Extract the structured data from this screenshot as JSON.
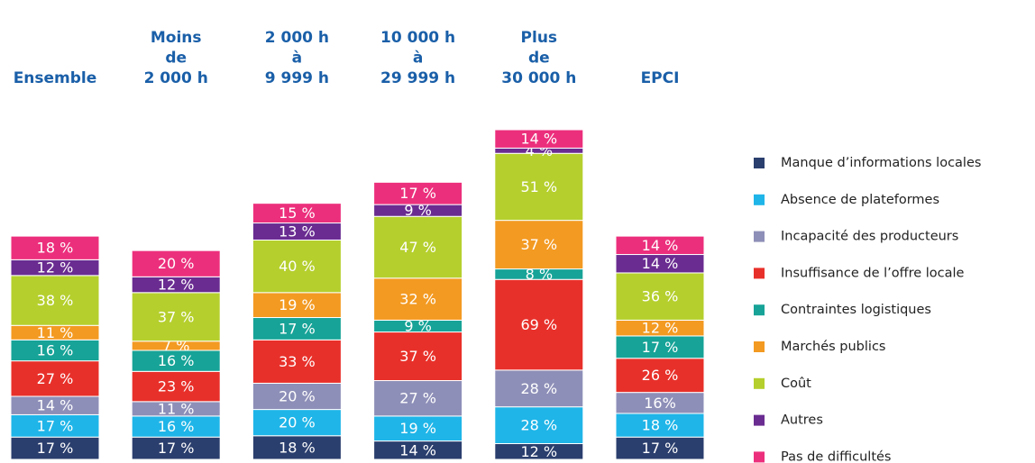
{
  "chart_data": {
    "type": "stacked_bar",
    "categories": [
      [
        "Ensemble"
      ],
      [
        "Moins",
        "de",
        "2 000 h"
      ],
      [
        "2 000 h",
        "à",
        "9 999 h"
      ],
      [
        "10 000 h",
        "à",
        "29 999 h"
      ],
      [
        "Plus",
        "de",
        "30 000 h"
      ],
      [
        "EPCI"
      ]
    ],
    "series": [
      {
        "name": "Manque d’informations locales",
        "color": "#2b3f6e",
        "values": [
          17,
          17,
          18,
          14,
          12,
          17
        ],
        "value_labels": [
          "17 %",
          "17 %",
          "18 %",
          "14 %",
          "12 %",
          "17 %"
        ]
      },
      {
        "name": "Absence de plateformes",
        "color": "#1fb5e8",
        "values": [
          17,
          16,
          20,
          19,
          28,
          18
        ],
        "value_labels": [
          "17 %",
          "16 %",
          "20 %",
          "19 %",
          "28 %",
          "18 %"
        ]
      },
      {
        "name": "Incapacité des producteurs",
        "color": "#8e8fb8",
        "values": [
          14,
          11,
          20,
          27,
          28,
          16
        ],
        "value_labels": [
          "14 %",
          "11 %",
          "20 %",
          "27 %",
          "28 %",
          "16%"
        ]
      },
      {
        "name": "Insuffisance de l’offre locale",
        "color": "#e8302a",
        "values": [
          27,
          23,
          33,
          37,
          69,
          26
        ],
        "value_labels": [
          "27 %",
          "23 %",
          "33 %",
          "37 %",
          "69 %",
          "26 %"
        ]
      },
      {
        "name": "Contraintes logistiques",
        "color": "#17a397",
        "values": [
          16,
          16,
          17,
          9,
          8,
          17
        ],
        "value_labels": [
          "16 %",
          "16 %",
          "17 %",
          "9 %",
          "8 %",
          "17 %"
        ]
      },
      {
        "name": "Marchés publics",
        "color": "#f39a22",
        "values": [
          11,
          7,
          19,
          32,
          37,
          12
        ],
        "value_labels": [
          "11 %",
          "7 %",
          "19 %",
          "32 %",
          "37 %",
          "12 %"
        ]
      },
      {
        "name": "Coût",
        "color": "#b5cf2d",
        "values": [
          38,
          37,
          40,
          47,
          51,
          36
        ],
        "value_labels": [
          "38 %",
          "37 %",
          "40 %",
          "47 %",
          "51 %",
          "36 %"
        ]
      },
      {
        "name": "Autres",
        "color": "#6a2c91",
        "values": [
          12,
          12,
          13,
          9,
          4,
          14
        ],
        "value_labels": [
          "12 %",
          "12 %",
          "13 %",
          "9 %",
          "4 %",
          "14 %"
        ]
      },
      {
        "name": "Pas de difficultés",
        "color": "#ec2f7c",
        "values": [
          18,
          20,
          15,
          17,
          14,
          14
        ],
        "value_labels": [
          "18 %",
          "20 %",
          "15 %",
          "17 %",
          "14 %",
          "14 %"
        ]
      }
    ]
  }
}
